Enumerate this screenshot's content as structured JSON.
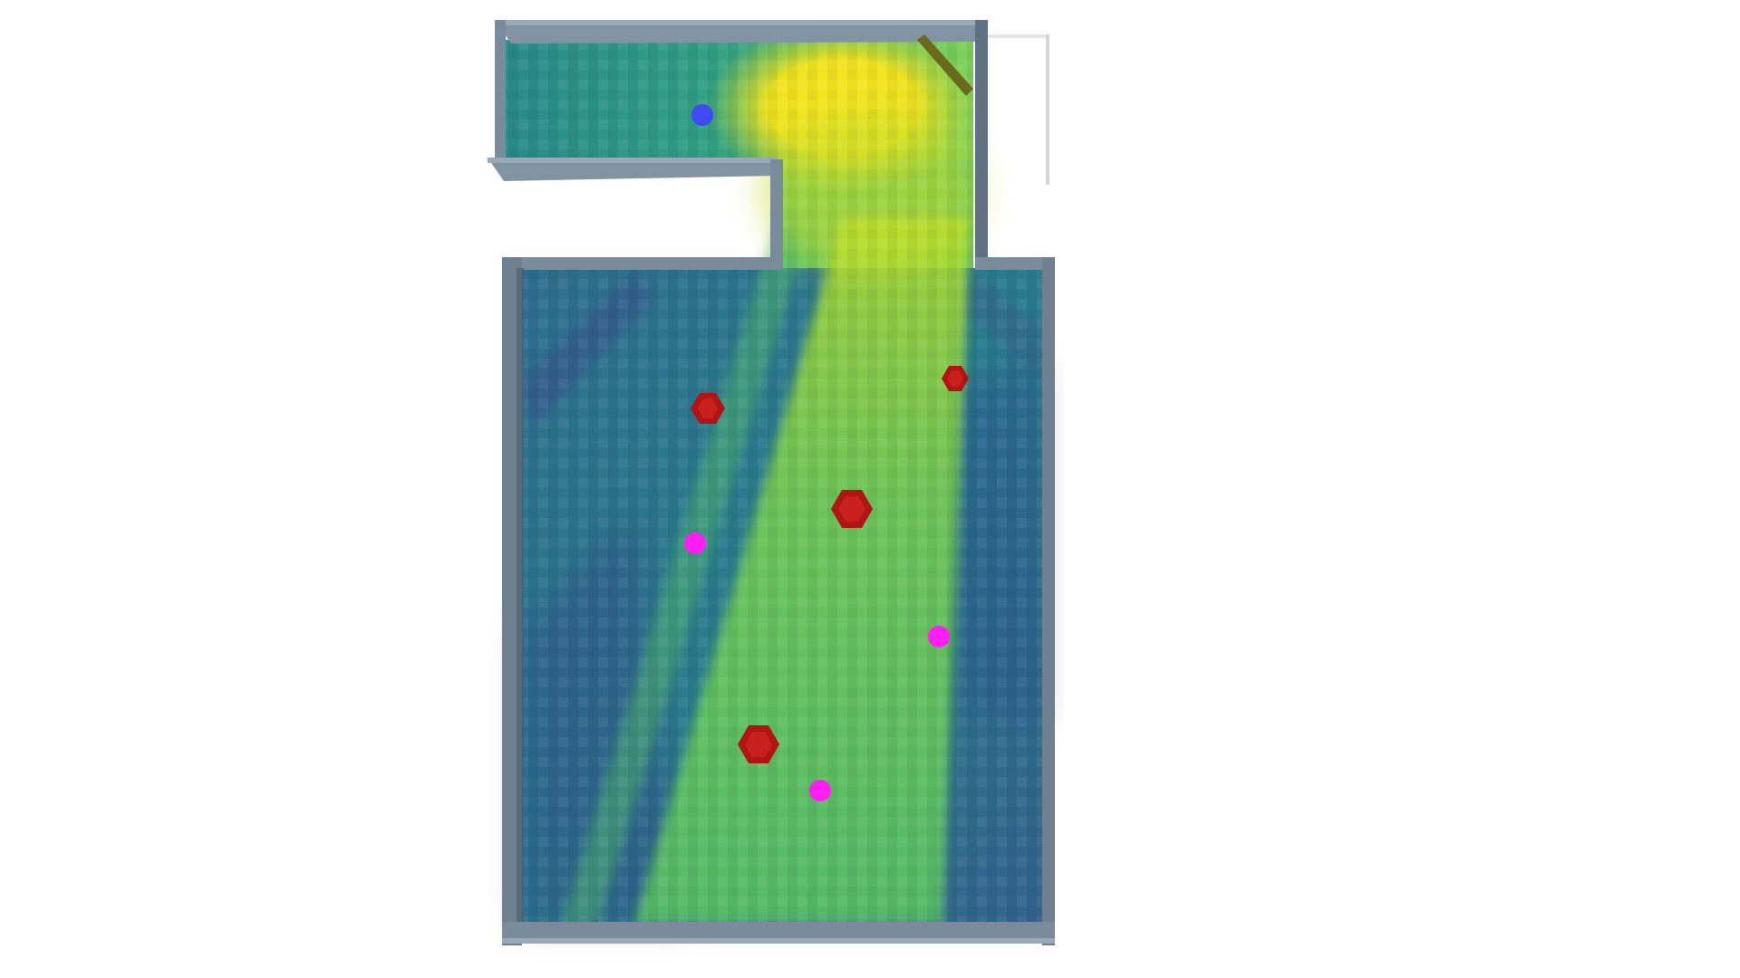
{
  "map": {
    "colors": {
      "background": "#ffffff",
      "wall_top": "#8293a4",
      "wall_face": "#5f7183",
      "wall_shadow": "#4a5a6b",
      "heat_low": "#3b2f7e",
      "heat_mid": "#25898d",
      "heat_high": "#f5e61e",
      "obstacle": "#b01414",
      "obstacle_top": "#c8201c",
      "target": "#ff1ff2",
      "agent": "#3f4af2",
      "door": "#6b6a1c"
    },
    "markers": [
      {
        "kind": "agent",
        "icon": "agent-dot-icon"
      },
      {
        "kind": "obstacle",
        "icon": "hexagon-obstacle-icon"
      },
      {
        "kind": "obstacle",
        "icon": "hexagon-obstacle-icon"
      },
      {
        "kind": "obstacle",
        "icon": "hexagon-obstacle-icon"
      },
      {
        "kind": "obstacle",
        "icon": "hexagon-obstacle-icon"
      },
      {
        "kind": "target",
        "icon": "target-dot-icon"
      },
      {
        "kind": "target",
        "icon": "target-dot-icon"
      },
      {
        "kind": "target",
        "icon": "target-dot-icon"
      }
    ]
  }
}
